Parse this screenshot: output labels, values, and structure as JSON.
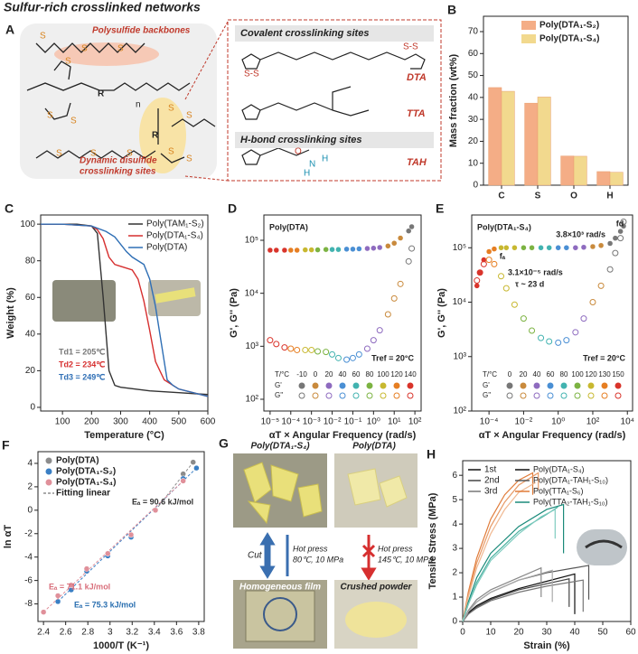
{
  "figure_title": "Sulfur-rich crosslinked networks",
  "panel_a": {
    "label": "A",
    "backbone_label": "Polysulfide backbones",
    "dynamic_label": [
      "Dynamic disulfide",
      "crosslinking sites"
    ],
    "covalent_header": "Covalent crosslinking sites",
    "hbond_header": "H-bond crosslinking sites",
    "molecules": [
      "DTA",
      "TTA",
      "TAH"
    ],
    "atoms": [
      "S",
      "S",
      "S",
      "S",
      "R",
      "S",
      "S",
      "n",
      "S",
      "S",
      "R",
      "S",
      "S",
      "S",
      "S",
      "S",
      "O",
      "N",
      "H",
      "H"
    ]
  },
  "panel_g": {
    "label": "G",
    "top_left": "Poly(DTA₁-S₄)",
    "top_right": "Poly(DTA)",
    "cut": "Cut",
    "hot_press_left": "Hot press",
    "condition_left": "80℃, 10 MPa",
    "hot_press_right": "Hot press",
    "condition_right": "145℃, 10 MPa",
    "bottom_left": "Homogeneous film",
    "bottom_right": "Crushed powder"
  },
  "chart_data": [
    {
      "type": "bar",
      "label": "B",
      "categories": [
        "C",
        "S",
        "O",
        "H"
      ],
      "series": [
        {
          "name": "Poly(DTA₁-S₂)",
          "color": "#f4ad86",
          "values": [
            44.5,
            37.4,
            13.3,
            6.2
          ]
        },
        {
          "name": "Poly(DTA₁-S₄)",
          "color": "#f2d98e",
          "values": [
            42.8,
            40.2,
            13.2,
            5.9
          ]
        }
      ],
      "ylabel": "Mass fraction (wt%)",
      "ylim": [
        0,
        77
      ],
      "yticks": [
        0,
        10,
        20,
        30,
        40,
        50,
        60,
        70
      ]
    },
    {
      "type": "line",
      "label": "C",
      "xlabel": "Temperature (°C)",
      "ylabel": "Weight (%)",
      "xlim": [
        25,
        600
      ],
      "xticks": [
        100,
        200,
        300,
        400,
        500,
        600
      ],
      "ylim": [
        -2,
        105
      ],
      "yticks": [
        0,
        20,
        40,
        60,
        80,
        100
      ],
      "series": [
        {
          "name": "Poly(TAM₁-S₂)",
          "color": "#333333",
          "x": [
            25,
            100,
            150,
            200,
            220,
            240,
            260,
            280,
            300,
            350,
            400,
            500,
            600
          ],
          "values": [
            100,
            100,
            100,
            99,
            95,
            60,
            20,
            12,
            11,
            10,
            9,
            8,
            7
          ]
        },
        {
          "name": "Poly(DTA₁-S₄)",
          "color": "#d62f2f",
          "x": [
            25,
            100,
            200,
            220,
            240,
            260,
            280,
            300,
            340,
            360,
            380,
            400,
            420,
            450,
            500,
            600
          ],
          "values": [
            100,
            100,
            99,
            97,
            92,
            82,
            78,
            77,
            75,
            70,
            58,
            42,
            25,
            15,
            10,
            6
          ]
        },
        {
          "name": "Poly(DTA)",
          "color": "#2f6fb5",
          "x": [
            25,
            100,
            200,
            250,
            280,
            300,
            320,
            340,
            380,
            400,
            420,
            440,
            460,
            480,
            500,
            600
          ],
          "values": [
            100,
            100,
            99,
            96,
            93,
            89,
            85,
            82,
            78,
            70,
            55,
            35,
            15,
            12,
            10,
            6
          ]
        }
      ],
      "annotations": [
        "Td1 = 205℃",
        "Td2 = 234℃",
        "Td3 = 249℃"
      ]
    },
    {
      "type": "scatter",
      "label": "D",
      "xlog": true,
      "ylog": true,
      "xlabel": "αT × Angular Frequency (rad/s)",
      "ylabel": "G', G'' (Pa)",
      "xlim": [
        5e-06,
        200
      ],
      "xticks": [
        {
          "value": 1e-05,
          "label": "10⁻⁵"
        },
        {
          "value": 0.0001,
          "label": "10⁻⁴"
        },
        {
          "value": 0.001,
          "label": "10⁻³"
        },
        {
          "value": 0.01,
          "label": "10⁻²"
        },
        {
          "value": 0.1,
          "label": "10⁻¹"
        },
        {
          "value": 1,
          "label": "10⁰"
        },
        {
          "value": 10,
          "label": "10¹"
        },
        {
          "value": 100,
          "label": "10²"
        }
      ],
      "ylim": [
        60,
        300000
      ],
      "yticks": [
        {
          "value": 100,
          "label": "10²"
        },
        {
          "value": 1000,
          "label": "10³"
        },
        {
          "value": 10000,
          "label": "10⁴"
        },
        {
          "value": 100000,
          "label": "10⁵"
        }
      ],
      "x": [
        1e-05,
        2e-05,
        5e-05,
        0.0001,
        0.0002,
        0.0005,
        0.001,
        0.002,
        0.005,
        0.01,
        0.02,
        0.05,
        0.1,
        0.2,
        0.5,
        1,
        2,
        5,
        10,
        20,
        50,
        70
      ],
      "point_colors": [
        "#d9342b",
        "#d9342b",
        "#d9342b",
        "#e67e22",
        "#e67e22",
        "#c8b830",
        "#c8b830",
        "#7cb342",
        "#7cb342",
        "#42b3b0",
        "#42b3b0",
        "#4a8fd4",
        "#4a8fd4",
        "#4a8fd4",
        "#8e6bbf",
        "#8e6bbf",
        "#8e6bbf",
        "#c98a3c",
        "#c98a3c",
        "#c98a3c",
        "#777777",
        "#777777"
      ],
      "series": [
        {
          "name": "G'",
          "marker": "filled",
          "values": [
            65000,
            65000,
            65000,
            65000,
            65000,
            66000,
            66000,
            66000,
            67000,
            67000,
            67000,
            68000,
            68000,
            69000,
            70000,
            71000,
            73000,
            78000,
            88000,
            110000,
            150000,
            180000
          ]
        },
        {
          "name": "G''",
          "marker": "open",
          "values": [
            1300,
            1100,
            950,
            900,
            850,
            850,
            850,
            800,
            780,
            700,
            600,
            560,
            600,
            700,
            900,
            1300,
            2000,
            4000,
            8000,
            15000,
            40000,
            70000
          ]
        }
      ],
      "legend_title": "T/°C",
      "temperatures": [
        -10,
        0,
        20,
        40,
        60,
        80,
        100,
        120,
        140
      ],
      "temperature_colors": [
        "#777777",
        "#c98a3c",
        "#8e6bbf",
        "#4a8fd4",
        "#42b3b0",
        "#7cb342",
        "#c8b830",
        "#e67e22",
        "#d9342b"
      ],
      "annotations": [
        "Poly(DTA)",
        "Tref = 20°C"
      ]
    },
    {
      "type": "scatter",
      "label": "E",
      "xlog": true,
      "ylog": true,
      "xlabel": "αT × Angular Frequency (rad/s)",
      "ylabel": "G', G'' (Pa)",
      "xlim": [
        1e-05,
        20000
      ],
      "xticks": [
        {
          "value": 0.0001,
          "label": "10⁻⁴"
        },
        {
          "value": 0.01,
          "label": "10⁻²"
        },
        {
          "value": 1,
          "label": "10⁰"
        },
        {
          "value": 100,
          "label": "10²"
        },
        {
          "value": 10000,
          "label": "10⁴"
        }
      ],
      "ylim": [
        100,
        400000
      ],
      "yticks": [
        {
          "value": 100,
          "label": "10²"
        },
        {
          "value": 1000,
          "label": "10³"
        },
        {
          "value": 10000,
          "label": "10⁴"
        },
        {
          "value": 100000,
          "label": "10⁵"
        }
      ],
      "x": [
        2e-05,
        3e-05,
        5e-05,
        0.0001,
        0.0002,
        0.0005,
        0.001,
        0.003,
        0.01,
        0.03,
        0.1,
        0.3,
        1,
        3,
        10,
        30,
        100,
        300,
        1000,
        2000,
        4000,
        6000
      ],
      "point_colors": [
        "#d9342b",
        "#d9342b",
        "#d9342b",
        "#e67e22",
        "#e67e22",
        "#c8b830",
        "#c8b830",
        "#c8b830",
        "#7cb342",
        "#7cb342",
        "#42b3b0",
        "#42b3b0",
        "#4a8fd4",
        "#4a8fd4",
        "#8e6bbf",
        "#8e6bbf",
        "#c98a3c",
        "#c98a3c",
        "#777777",
        "#777777",
        "#777777",
        "#777777"
      ],
      "series": [
        {
          "name": "G'",
          "marker": "filled",
          "values": [
            20000,
            35000,
            60000,
            85000,
            95000,
            100000,
            100000,
            100000,
            100000,
            100000,
            100000,
            100000,
            100000,
            100000,
            100000,
            102000,
            105000,
            110000,
            120000,
            150000,
            200000,
            250000
          ]
        },
        {
          "name": "G''",
          "marker": "open",
          "values": [
            25000,
            35000,
            50000,
            60000,
            50000,
            30000,
            18000,
            9000,
            5000,
            3000,
            2200,
            1900,
            1800,
            2000,
            2800,
            5000,
            10000,
            20000,
            40000,
            80000,
            150000,
            300000
          ]
        }
      ],
      "legend_title": "T/°C",
      "temperatures": [
        0,
        20,
        40,
        60,
        80,
        100,
        120,
        130,
        150
      ],
      "temperature_colors": [
        "#777777",
        "#c98a3c",
        "#8e6bbf",
        "#4a8fd4",
        "#42b3b0",
        "#7cb342",
        "#c8b830",
        "#e67e22",
        "#d9342b"
      ],
      "annotations": [
        "Poly(DTA₁-S₄)",
        "3.8×10³ rad/s",
        "fd",
        "fₐ",
        "3.1×10⁻⁵ rad/s",
        "τ ~ 23 d",
        "Tref = 20°C"
      ]
    },
    {
      "type": "scatter",
      "label": "F",
      "xlabel": "1000/T (K⁻¹)",
      "ylabel": "ln αT",
      "xlim": [
        2.35,
        3.85
      ],
      "xticks": [
        2.4,
        2.6,
        2.8,
        3.0,
        3.2,
        3.4,
        3.6,
        3.8
      ],
      "ylim": [
        -9.5,
        5
      ],
      "yticks": [
        -8,
        -6,
        -4,
        -2,
        0,
        2,
        4
      ],
      "series": [
        {
          "name": "Poly(DTA)",
          "color": "#8c8c8c",
          "marker": "filled",
          "x": [
            3.41,
            3.66,
            3.75
          ],
          "values": [
            0,
            3.1,
            4.1
          ]
        },
        {
          "name": "Poly(DTA₁-S₂)",
          "color": "#3a7fc4",
          "marker": "filled",
          "x": [
            2.53,
            2.65,
            2.79,
            2.98,
            3.19,
            3.41,
            3.66,
            3.78
          ],
          "values": [
            -7.8,
            -6.8,
            -5.2,
            -3.9,
            -2.3,
            0,
            2.7,
            3.6
          ]
        },
        {
          "name": "Poly(DTA₁-S₄)",
          "color": "#e0909a",
          "marker": "filled",
          "x": [
            2.4,
            2.53,
            2.65,
            2.79,
            2.98,
            3.19,
            3.41,
            3.66
          ],
          "values": [
            -8.7,
            -7.3,
            -6.4,
            -5,
            -3.7,
            -2.1,
            0,
            2.5
          ]
        }
      ],
      "fit_label": "Fitting linear",
      "annotations": [
        "Eₐ = 90.6 kJ/mol",
        "Eₐ = 71.1 kJ/mol",
        "Eₐ = 75.3 kJ/mol"
      ]
    },
    {
      "type": "line",
      "label": "H",
      "xlabel": "Strain (%)",
      "ylabel": "Tensile Stress (MPa)",
      "xlim": [
        0,
        60
      ],
      "xticks": [
        0,
        10,
        20,
        30,
        40,
        50,
        60
      ],
      "ylim": [
        0,
        6.6
      ],
      "yticks": [
        0,
        1,
        2,
        3,
        4,
        5,
        6
      ],
      "run_names": [
        "1st",
        "2nd",
        "3rd"
      ],
      "series": [
        {
          "name": "Poly(DTA₁-S₄)",
          "colors": [
            "#111111",
            "#444444",
            "#777777"
          ],
          "runs": [
            {
              "x": [
                0,
                2,
                5,
                10,
                20,
                30,
                40,
                40
              ],
              "values": [
                0,
                0.35,
                0.65,
                0.95,
                1.35,
                1.65,
                1.95,
                0.3
              ]
            },
            {
              "x": [
                0,
                2,
                5,
                10,
                20,
                30,
                38,
                38
              ],
              "values": [
                0,
                0.3,
                0.6,
                0.9,
                1.3,
                1.55,
                1.75,
                0.6
              ]
            },
            {
              "x": [
                0,
                2,
                5,
                10,
                20,
                30,
                43,
                43
              ],
              "values": [
                0,
                0.3,
                0.55,
                0.85,
                1.2,
                1.45,
                1.7,
                0.4
              ]
            }
          ]
        },
        {
          "name": "Poly(DTA₁-TAH₁-S₁₀)",
          "colors": [
            "#555555",
            "#888888",
            "#aaaaaa"
          ],
          "runs": [
            {
              "x": [
                0,
                2,
                5,
                10,
                20,
                30,
                45,
                45
              ],
              "values": [
                0,
                0.4,
                0.8,
                1.2,
                1.7,
                2.0,
                2.3,
                0.9
              ]
            },
            {
              "x": [
                0,
                2,
                5,
                10,
                20,
                28,
                28
              ],
              "values": [
                0,
                0.45,
                0.9,
                1.3,
                1.8,
                2.2,
                1.0
              ]
            },
            {
              "x": [
                0,
                2,
                5,
                10,
                20,
                32,
                32
              ],
              "values": [
                0,
                0.4,
                0.8,
                1.2,
                1.7,
                2.1,
                0.8
              ]
            }
          ]
        },
        {
          "name": "Poly(TTA₁-S₆)",
          "colors": [
            "#e07b39",
            "#e89a66",
            "#f0b891"
          ],
          "runs": [
            {
              "x": [
                0,
                2,
                5,
                10,
                15,
                20,
                25,
                25
              ],
              "values": [
                0,
                1.2,
                2.6,
                4.2,
                5.2,
                5.8,
                6.1,
                5.2
              ]
            },
            {
              "x": [
                0,
                2,
                5,
                10,
                15,
                20,
                27,
                27
              ],
              "values": [
                0,
                1.1,
                2.4,
                3.9,
                4.9,
                5.6,
                6.1,
                5.4
              ]
            },
            {
              "x": [
                0,
                2,
                5,
                10,
                15,
                20,
                26
              ],
              "values": [
                0,
                1.0,
                2.2,
                3.6,
                4.6,
                5.3,
                5.7
              ]
            }
          ]
        },
        {
          "name": "Poly(TTA₂-TAH₁-S₁₀)",
          "colors": [
            "#1a8a7a",
            "#4ab0a0",
            "#80ccc0"
          ],
          "runs": [
            {
              "x": [
                0,
                2,
                5,
                10,
                20,
                30,
                36,
                36
              ],
              "values": [
                0,
                0.8,
                1.8,
                2.8,
                3.9,
                4.6,
                4.8,
                2.8
              ]
            },
            {
              "x": [
                0,
                2,
                5,
                10,
                20,
                30,
                34
              ],
              "values": [
                0,
                0.7,
                1.6,
                2.6,
                3.7,
                4.4,
                4.7
              ]
            },
            {
              "x": [
                0,
                2,
                5,
                10,
                20,
                28,
                33,
                33
              ],
              "values": [
                0,
                0.7,
                1.5,
                2.5,
                3.6,
                4.3,
                4.6,
                3.4
              ]
            }
          ]
        }
      ]
    }
  ]
}
